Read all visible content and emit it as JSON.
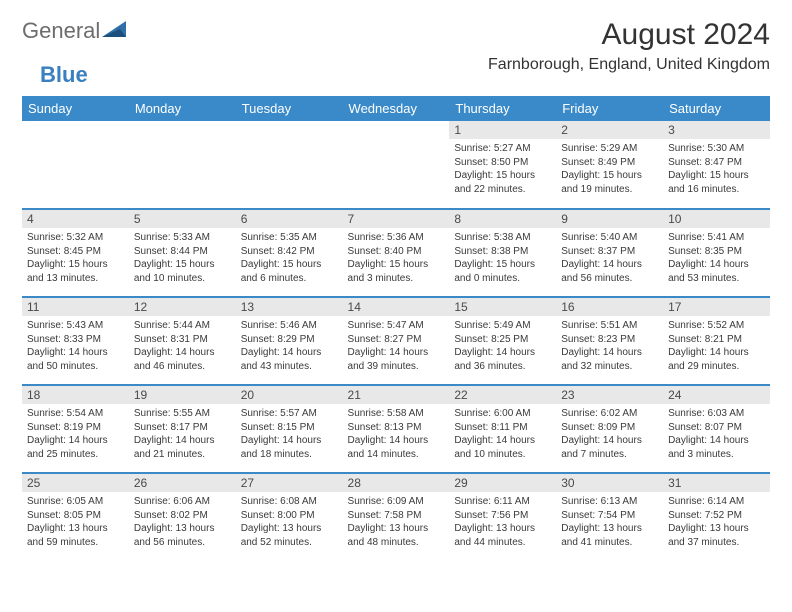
{
  "brand": {
    "name1": "General",
    "name2": "Blue"
  },
  "title": "August 2024",
  "location": "Farnborough, England, United Kingdom",
  "colors": {
    "header_bg": "#3a8ac9",
    "header_text": "#ffffff",
    "daynum_bg": "#e8e8e8",
    "border": "#3a8ac9",
    "body_text": "#3a3a3a",
    "title_text": "#333333",
    "logo_gray": "#6d6d6d",
    "logo_blue": "#3a7fbf"
  },
  "weekdays": [
    "Sunday",
    "Monday",
    "Tuesday",
    "Wednesday",
    "Thursday",
    "Friday",
    "Saturday"
  ],
  "weeks": [
    [
      null,
      null,
      null,
      null,
      {
        "n": "1",
        "sr": "5:27 AM",
        "ss": "8:50 PM",
        "dl": "15 hours and 22 minutes."
      },
      {
        "n": "2",
        "sr": "5:29 AM",
        "ss": "8:49 PM",
        "dl": "15 hours and 19 minutes."
      },
      {
        "n": "3",
        "sr": "5:30 AM",
        "ss": "8:47 PM",
        "dl": "15 hours and 16 minutes."
      }
    ],
    [
      {
        "n": "4",
        "sr": "5:32 AM",
        "ss": "8:45 PM",
        "dl": "15 hours and 13 minutes."
      },
      {
        "n": "5",
        "sr": "5:33 AM",
        "ss": "8:44 PM",
        "dl": "15 hours and 10 minutes."
      },
      {
        "n": "6",
        "sr": "5:35 AM",
        "ss": "8:42 PM",
        "dl": "15 hours and 6 minutes."
      },
      {
        "n": "7",
        "sr": "5:36 AM",
        "ss": "8:40 PM",
        "dl": "15 hours and 3 minutes."
      },
      {
        "n": "8",
        "sr": "5:38 AM",
        "ss": "8:38 PM",
        "dl": "15 hours and 0 minutes."
      },
      {
        "n": "9",
        "sr": "5:40 AM",
        "ss": "8:37 PM",
        "dl": "14 hours and 56 minutes."
      },
      {
        "n": "10",
        "sr": "5:41 AM",
        "ss": "8:35 PM",
        "dl": "14 hours and 53 minutes."
      }
    ],
    [
      {
        "n": "11",
        "sr": "5:43 AM",
        "ss": "8:33 PM",
        "dl": "14 hours and 50 minutes."
      },
      {
        "n": "12",
        "sr": "5:44 AM",
        "ss": "8:31 PM",
        "dl": "14 hours and 46 minutes."
      },
      {
        "n": "13",
        "sr": "5:46 AM",
        "ss": "8:29 PM",
        "dl": "14 hours and 43 minutes."
      },
      {
        "n": "14",
        "sr": "5:47 AM",
        "ss": "8:27 PM",
        "dl": "14 hours and 39 minutes."
      },
      {
        "n": "15",
        "sr": "5:49 AM",
        "ss": "8:25 PM",
        "dl": "14 hours and 36 minutes."
      },
      {
        "n": "16",
        "sr": "5:51 AM",
        "ss": "8:23 PM",
        "dl": "14 hours and 32 minutes."
      },
      {
        "n": "17",
        "sr": "5:52 AM",
        "ss": "8:21 PM",
        "dl": "14 hours and 29 minutes."
      }
    ],
    [
      {
        "n": "18",
        "sr": "5:54 AM",
        "ss": "8:19 PM",
        "dl": "14 hours and 25 minutes."
      },
      {
        "n": "19",
        "sr": "5:55 AM",
        "ss": "8:17 PM",
        "dl": "14 hours and 21 minutes."
      },
      {
        "n": "20",
        "sr": "5:57 AM",
        "ss": "8:15 PM",
        "dl": "14 hours and 18 minutes."
      },
      {
        "n": "21",
        "sr": "5:58 AM",
        "ss": "8:13 PM",
        "dl": "14 hours and 14 minutes."
      },
      {
        "n": "22",
        "sr": "6:00 AM",
        "ss": "8:11 PM",
        "dl": "14 hours and 10 minutes."
      },
      {
        "n": "23",
        "sr": "6:02 AM",
        "ss": "8:09 PM",
        "dl": "14 hours and 7 minutes."
      },
      {
        "n": "24",
        "sr": "6:03 AM",
        "ss": "8:07 PM",
        "dl": "14 hours and 3 minutes."
      }
    ],
    [
      {
        "n": "25",
        "sr": "6:05 AM",
        "ss": "8:05 PM",
        "dl": "13 hours and 59 minutes."
      },
      {
        "n": "26",
        "sr": "6:06 AM",
        "ss": "8:02 PM",
        "dl": "13 hours and 56 minutes."
      },
      {
        "n": "27",
        "sr": "6:08 AM",
        "ss": "8:00 PM",
        "dl": "13 hours and 52 minutes."
      },
      {
        "n": "28",
        "sr": "6:09 AM",
        "ss": "7:58 PM",
        "dl": "13 hours and 48 minutes."
      },
      {
        "n": "29",
        "sr": "6:11 AM",
        "ss": "7:56 PM",
        "dl": "13 hours and 44 minutes."
      },
      {
        "n": "30",
        "sr": "6:13 AM",
        "ss": "7:54 PM",
        "dl": "13 hours and 41 minutes."
      },
      {
        "n": "31",
        "sr": "6:14 AM",
        "ss": "7:52 PM",
        "dl": "13 hours and 37 minutes."
      }
    ]
  ],
  "labels": {
    "sunrise": "Sunrise: ",
    "sunset": "Sunset: ",
    "daylight": "Daylight: "
  }
}
